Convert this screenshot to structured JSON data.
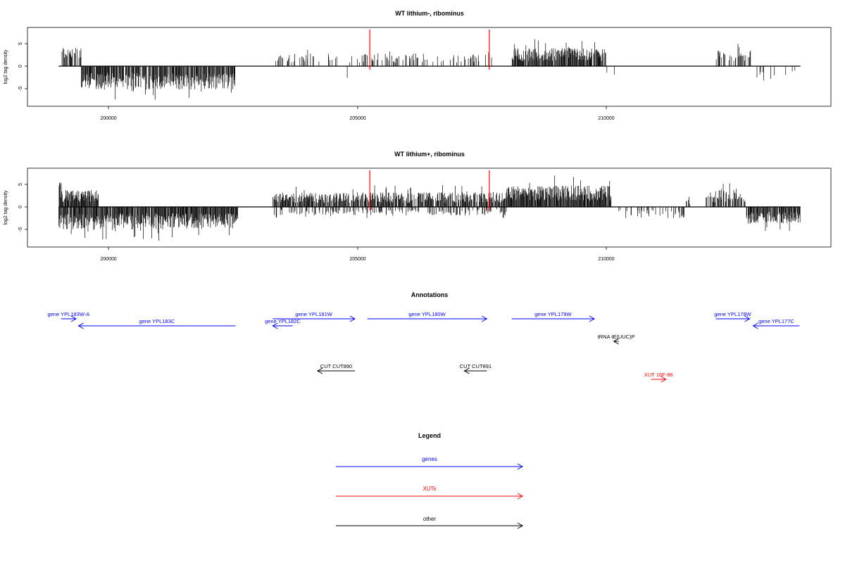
{
  "chart_data": {
    "type": "genome-browser",
    "colors": {
      "signal": "#000000",
      "marker": "#ff0000",
      "gene": "#0000ff",
      "xut": "#ff0000",
      "other": "#000000"
    },
    "xlim": [
      198000,
      214600
    ],
    "panels": [
      {
        "title": "WT lithium-, ribominus",
        "ylabel": "log2 tag density",
        "ylim": [
          -9,
          9
        ],
        "yticks": [
          -5,
          0,
          5
        ],
        "ytick_labels": [
          "-5",
          "0",
          "5"
        ],
        "xticks": [
          200000,
          205000,
          210000
        ],
        "xtick_labels": [
          "200000",
          "205000",
          "210000"
        ],
        "baseline": [
          199000,
          213900
        ],
        "markers": [
          205250,
          207650
        ],
        "signal_segments": [
          {
            "start": 199050,
            "end": 199450,
            "density": 0.6,
            "amp": 3.5
          },
          {
            "start": 199450,
            "end": 202550,
            "density": 0.85,
            "amp": -4.2
          },
          {
            "start": 203300,
            "end": 204900,
            "density": 0.2,
            "amp": 2.2
          },
          {
            "start": 204700,
            "end": 205000,
            "density": 0.05,
            "amp": -2.5
          },
          {
            "start": 205000,
            "end": 207700,
            "density": 0.22,
            "amp": 2.3
          },
          {
            "start": 208100,
            "end": 210000,
            "density": 0.9,
            "amp": 3.2
          },
          {
            "start": 210000,
            "end": 210300,
            "density": 0.05,
            "amp": -2.5
          },
          {
            "start": 212200,
            "end": 212900,
            "density": 0.4,
            "amp": 2.8
          },
          {
            "start": 213000,
            "end": 213900,
            "density": 0.12,
            "amp": -2.6
          }
        ]
      },
      {
        "title": "WT lithium+, ribominus",
        "ylabel": "log2 tag density",
        "ylim": [
          -9,
          9
        ],
        "yticks": [
          -5,
          0,
          5
        ],
        "ytick_labels": [
          "-5",
          "0",
          "5"
        ],
        "xticks": [
          200000,
          205000,
          210000
        ],
        "xtick_labels": [
          "200000",
          "205000",
          "210000"
        ],
        "baseline": [
          199000,
          213900
        ],
        "markers": [
          205250,
          207650
        ],
        "signal_segments": [
          {
            "start": 199000,
            "end": 199800,
            "density": 0.95,
            "amp": 3.0
          },
          {
            "start": 199000,
            "end": 202600,
            "density": 0.95,
            "amp": -4.0
          },
          {
            "start": 203300,
            "end": 208000,
            "density": 0.8,
            "amp": 2.6
          },
          {
            "start": 203300,
            "end": 208000,
            "density": 0.3,
            "amp": -1.5
          },
          {
            "start": 208000,
            "end": 210100,
            "density": 0.97,
            "amp": 3.8
          },
          {
            "start": 210200,
            "end": 211600,
            "density": 0.2,
            "amp": -2.0
          },
          {
            "start": 211600,
            "end": 211700,
            "density": 0.5,
            "amp": 1.8
          },
          {
            "start": 212000,
            "end": 212800,
            "density": 0.7,
            "amp": 3.0
          },
          {
            "start": 212800,
            "end": 213900,
            "density": 0.85,
            "amp": -3.0
          }
        ]
      }
    ],
    "annotations": {
      "title": "Annotations",
      "features": [
        {
          "label": "gene YPL183W-A",
          "type": "gene",
          "start": 199050,
          "end": 199350,
          "strand": "+",
          "row": 0
        },
        {
          "label": "gene YPL183C",
          "type": "gene",
          "start": 199400,
          "end": 202550,
          "strand": "-",
          "row": 1
        },
        {
          "label": "gene YPL182C",
          "type": "gene",
          "start": 203300,
          "end": 203700,
          "strand": "-",
          "row": 1
        },
        {
          "label": "gene YPL181W",
          "type": "gene",
          "start": 203300,
          "end": 204950,
          "strand": "+",
          "row": 0
        },
        {
          "label": "gene YPL180W",
          "type": "gene",
          "start": 205200,
          "end": 207600,
          "strand": "+",
          "row": 0
        },
        {
          "label": "gene YPL179W",
          "type": "gene",
          "start": 208100,
          "end": 209760,
          "strand": "+",
          "row": 0
        },
        {
          "label": "gene YPL178W",
          "type": "gene",
          "start": 212200,
          "end": 212880,
          "strand": "+",
          "row": 0
        },
        {
          "label": "gene YPL177C",
          "type": "gene",
          "start": 212950,
          "end": 213880,
          "strand": "-",
          "row": 1
        },
        {
          "label": "tRNA tE(UUC)P",
          "type": "other",
          "start": 210150,
          "end": 210250,
          "strand": "-",
          "row": 2
        },
        {
          "label": "CUT CUT890",
          "type": "other",
          "start": 204200,
          "end": 204950,
          "strand": "-",
          "row": 3
        },
        {
          "label": "CUT CUT891",
          "type": "other",
          "start": 207150,
          "end": 207600,
          "strand": "-",
          "row": 3
        },
        {
          "label": "XUT 16F-86",
          "type": "xut",
          "start": 210900,
          "end": 211200,
          "strand": "+",
          "row": 4
        }
      ]
    },
    "legend": {
      "title": "Legend",
      "items": [
        {
          "label": "genes",
          "type": "gene"
        },
        {
          "label": "XUTs",
          "type": "xut"
        },
        {
          "label": "other",
          "type": "other"
        }
      ]
    }
  }
}
